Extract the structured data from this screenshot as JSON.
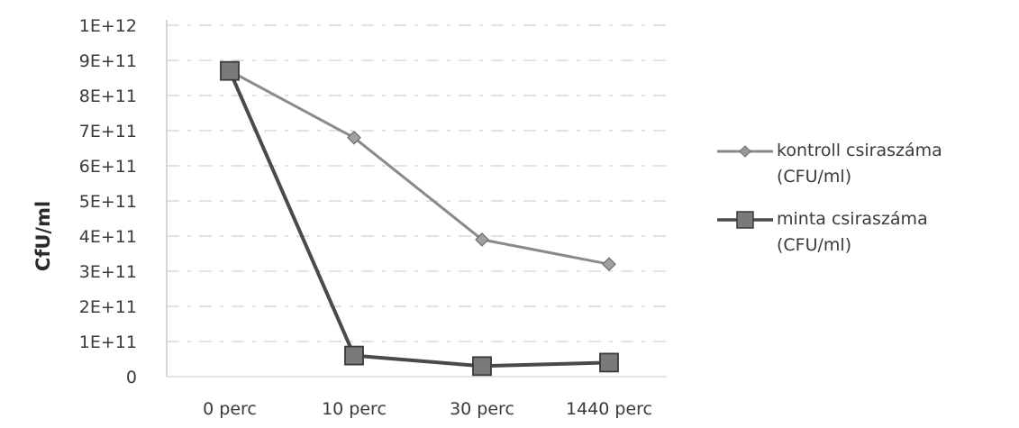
{
  "chart_data": {
    "type": "line",
    "categories": [
      "0 perc",
      "10 perc",
      "30 perc",
      "1440 perc"
    ],
    "series": [
      {
        "name": "kontroll csiraszáma (CFU/ml)",
        "values": [
          870000000000,
          680000000000,
          390000000000,
          320000000000
        ],
        "color": "#8a8a8a",
        "marker": "diamond"
      },
      {
        "name": "minta csiraszáma (CFU/ml)",
        "values": [
          870000000000,
          60000000000,
          30000000000,
          40000000000
        ],
        "color": "#4a4a4a",
        "marker": "square"
      }
    ],
    "ylabel": "CfU/ml",
    "xlabel": "",
    "ylim": [
      0,
      1000000000000
    ],
    "yticks": [
      0,
      100000000000,
      200000000000,
      300000000000,
      400000000000,
      500000000000,
      600000000000,
      700000000000,
      800000000000,
      900000000000,
      1000000000000
    ],
    "ytick_labels": [
      "0",
      "1E+11",
      "2E+11",
      "3E+11",
      "4E+11",
      "5E+11",
      "6E+11",
      "7E+11",
      "8E+11",
      "9E+11",
      "1E+12"
    ],
    "grid": "horizontal-dashed",
    "legend_position": "right"
  }
}
